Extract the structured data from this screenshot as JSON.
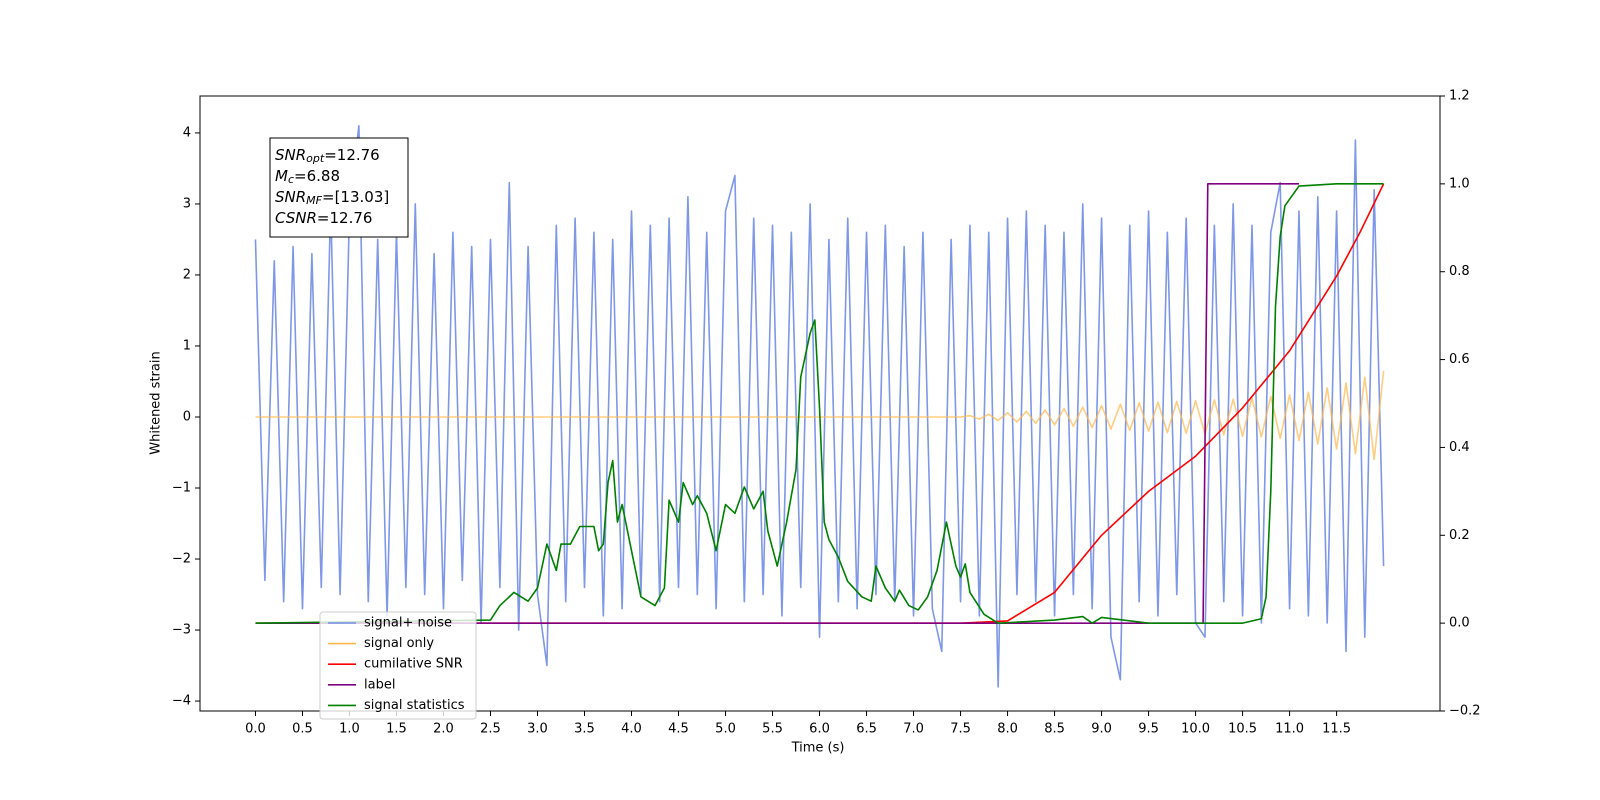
{
  "chart_data": {
    "type": "line",
    "xlabel": "Time (s)",
    "ylabel": "Whitened strain",
    "xlim": [
      -0.59,
      12.6
    ],
    "ylim": [
      -4.14,
      4.52
    ],
    "y2lim": [
      -0.2,
      1.2
    ],
    "xticks": [
      {
        "value": 0,
        "label": "0.0"
      },
      {
        "value": 0.5,
        "label": "0.5"
      },
      {
        "value": 1,
        "label": "1.0"
      },
      {
        "value": 1.5,
        "label": "1.5"
      },
      {
        "value": 2,
        "label": "2.0"
      },
      {
        "value": 2.5,
        "label": "2.5"
      },
      {
        "value": 3,
        "label": "3.0"
      },
      {
        "value": 3.5,
        "label": "3.5"
      },
      {
        "value": 4,
        "label": "4.0"
      },
      {
        "value": 4.5,
        "label": "4.5"
      },
      {
        "value": 5,
        "label": "5.0"
      },
      {
        "value": 5.5,
        "label": "5.5"
      },
      {
        "value": 6,
        "label": "6.0"
      },
      {
        "value": 6.5,
        "label": "6.5"
      },
      {
        "value": 7,
        "label": "7.0"
      },
      {
        "value": 7.5,
        "label": "7.5"
      },
      {
        "value": 8,
        "label": "8.0"
      },
      {
        "value": 8.5,
        "label": "8.5"
      },
      {
        "value": 9,
        "label": "9.0"
      },
      {
        "value": 9.5,
        "label": "9.5"
      },
      {
        "value": 10,
        "label": "10.0"
      },
      {
        "value": 10.5,
        "label": "10.5"
      },
      {
        "value": 11,
        "label": "11.0"
      },
      {
        "value": 11.5,
        "label": "11.5"
      }
    ],
    "yticks": [
      {
        "value": -4,
        "label": "−4"
      },
      {
        "value": -3,
        "label": "−3"
      },
      {
        "value": -2,
        "label": "−2"
      },
      {
        "value": -1,
        "label": "−1"
      },
      0,
      1,
      2,
      3,
      4
    ],
    "y2ticks": [
      {
        "value": -0.2,
        "label": "−0.2"
      },
      {
        "value": 0,
        "label": "0.0"
      },
      0.2,
      0.4,
      0.6,
      0.8,
      {
        "value": 1,
        "label": "1.0"
      },
      1.2
    ],
    "annotation": [
      {
        "main": "SNR",
        "sub": "opt",
        "text": "=12.76"
      },
      {
        "main": "M",
        "sub": "c",
        "text": "=6.88"
      },
      {
        "main": "SNR",
        "sub": "MF",
        "text": "=[13.03]"
      },
      {
        "main": "CSNR",
        "text": "=12.76"
      }
    ],
    "legend": "lower left",
    "series": [
      {
        "name": "signal+ noise",
        "color": "#7791e6",
        "x": [
          0,
          0.1,
          0.2,
          0.3,
          0.4,
          0.5,
          0.6,
          0.7,
          0.8,
          0.9,
          1,
          1.1,
          1.2,
          1.3,
          1.4,
          1.5,
          1.6,
          1.7,
          1.8,
          1.9,
          2,
          2.1,
          2.2,
          2.3,
          2.4,
          2.5,
          2.6,
          2.7,
          2.8,
          2.9,
          3,
          3.1,
          3.2,
          3.3,
          3.4,
          3.5,
          3.6,
          3.7,
          3.8,
          3.9,
          4,
          4.1,
          4.2,
          4.3,
          4.4,
          4.5,
          4.6,
          4.7,
          4.8,
          4.9,
          5,
          5.1,
          5.2,
          5.3,
          5.4,
          5.5,
          5.6,
          5.7,
          5.8,
          5.9,
          6,
          6.1,
          6.2,
          6.3,
          6.4,
          6.5,
          6.6,
          6.7,
          6.8,
          6.9,
          7,
          7.1,
          7.2,
          7.3,
          7.4,
          7.5,
          7.6,
          7.7,
          7.8,
          7.9,
          8,
          8.1,
          8.2,
          8.3,
          8.4,
          8.5,
          8.6,
          8.7,
          8.8,
          8.9,
          9,
          9.1,
          9.2,
          9.3,
          9.4,
          9.5,
          9.6,
          9.7,
          9.8,
          9.9,
          10,
          10.1,
          10.2,
          10.3,
          10.4,
          10.5,
          10.6,
          10.7,
          10.8,
          10.9,
          11,
          11.1,
          11.2,
          11.3,
          11.4,
          11.5,
          11.6,
          11.7,
          11.8,
          11.9,
          12
        ],
        "values": [
          2.5,
          -2.3,
          2.2,
          -2.6,
          2.4,
          -2.7,
          2.3,
          -2.4,
          3.0,
          -2.5,
          2.9,
          4.1,
          -2.6,
          2.5,
          -2.8,
          2.6,
          -2.4,
          3.0,
          -2.5,
          2.3,
          -2.7,
          2.6,
          -2.3,
          2.4,
          -2.9,
          2.5,
          -2.4,
          3.3,
          -3.0,
          2.4,
          -2.5,
          -3.5,
          2.7,
          -2.6,
          2.8,
          -2.4,
          2.6,
          -2.8,
          2.5,
          -2.7,
          2.9,
          -2.5,
          2.7,
          -2.6,
          2.8,
          -2.4,
          3.1,
          -2.5,
          2.6,
          -2.7,
          2.9,
          3.4,
          -2.6,
          2.8,
          -2.5,
          2.7,
          -2.8,
          2.6,
          -2.4,
          3.0,
          -3.1,
          2.5,
          -2.6,
          2.8,
          -2.7,
          2.6,
          -2.5,
          2.7,
          -2.6,
          2.4,
          -2.8,
          2.6,
          -2.7,
          -3.3,
          2.5,
          -2.6,
          2.7,
          -2.8,
          2.6,
          -3.8,
          2.8,
          -2.5,
          2.9,
          -2.6,
          2.7,
          -2.8,
          2.6,
          -2.5,
          3.0,
          -2.7,
          2.8,
          -3.1,
          -3.7,
          2.7,
          -2.6,
          2.9,
          -2.8,
          2.6,
          -2.5,
          2.8,
          -2.9,
          -3.1,
          2.7,
          -2.6,
          3.0,
          -2.8,
          2.7,
          -2.9,
          2.6,
          3.3,
          -2.7,
          2.9,
          -2.8,
          3.1,
          -2.9,
          2.9,
          -3.3,
          3.9,
          -3.1,
          3.2,
          -2.1
        ]
      },
      {
        "name": "signal only",
        "color": "#ffb84d",
        "x": [
          0,
          7.5,
          7.6,
          7.7,
          7.8,
          7.9,
          8,
          8.1,
          8.2,
          8.3,
          8.4,
          8.5,
          8.6,
          8.7,
          8.8,
          8.9,
          9,
          9.1,
          9.2,
          9.3,
          9.4,
          9.5,
          9.6,
          9.7,
          9.8,
          9.9,
          10,
          10.1,
          10.2,
          10.3,
          10.4,
          10.5,
          10.6,
          10.7,
          10.8,
          10.9,
          11,
          11.1,
          11.2,
          11.3,
          11.4,
          11.5,
          11.6,
          11.7,
          11.8,
          11.9,
          12
        ],
        "values": [
          0,
          0,
          0.02,
          -0.03,
          0.04,
          -0.05,
          0.06,
          -0.07,
          0.08,
          -0.09,
          0.1,
          -0.11,
          0.12,
          -0.13,
          0.14,
          -0.15,
          0.16,
          -0.17,
          0.18,
          -0.19,
          0.2,
          -0.2,
          0.21,
          -0.22,
          0.22,
          -0.23,
          0.23,
          -0.24,
          0.24,
          -0.25,
          0.25,
          -0.27,
          0.27,
          -0.28,
          0.29,
          -0.3,
          0.31,
          -0.33,
          0.35,
          -0.38,
          0.41,
          -0.45,
          0.48,
          -0.52,
          0.56,
          -0.6,
          0.65
        ]
      },
      {
        "name": "cumilative SNR",
        "color": "#ff0000",
        "axis": "y2",
        "x": [
          0,
          7.5,
          8,
          8.5,
          9,
          9.5,
          10,
          10.5,
          11,
          11.5,
          11.75,
          12
        ],
        "values": [
          0,
          0,
          0.005,
          0.07,
          0.2,
          0.3,
          0.38,
          0.49,
          0.62,
          0.79,
          0.89,
          1.0
        ]
      },
      {
        "name": "label",
        "color": "#800080",
        "axis": "y2",
        "x": [
          0,
          10.08,
          10.13,
          11.1
        ],
        "values": [
          0,
          0,
          1,
          1
        ]
      },
      {
        "name": "signal statistics",
        "color": "#008000",
        "axis": "y2",
        "x": [
          0,
          2.5,
          2.6,
          2.75,
          2.9,
          3,
          3.1,
          3.2,
          3.25,
          3.35,
          3.45,
          3.6,
          3.65,
          3.7,
          3.75,
          3.8,
          3.85,
          3.9,
          4,
          4.1,
          4.25,
          4.35,
          4.4,
          4.5,
          4.55,
          4.65,
          4.7,
          4.8,
          4.9,
          5,
          5.1,
          5.2,
          5.3,
          5.4,
          5.45,
          5.55,
          5.65,
          5.75,
          5.8,
          5.9,
          5.95,
          6,
          6.05,
          6.1,
          6.2,
          6.3,
          6.45,
          6.55,
          6.6,
          6.7,
          6.8,
          6.85,
          6.95,
          7.05,
          7.15,
          7.25,
          7.35,
          7.45,
          7.5,
          7.55,
          7.6,
          7.75,
          7.9,
          8.5,
          8.8,
          8.9,
          9,
          9.5,
          10.5,
          10.7,
          10.75,
          10.8,
          10.85,
          10.9,
          10.95,
          11.1,
          11.5,
          12
        ],
        "values": [
          0,
          0.007,
          0.04,
          0.07,
          0.05,
          0.08,
          0.18,
          0.12,
          0.18,
          0.18,
          0.22,
          0.22,
          0.165,
          0.18,
          0.32,
          0.37,
          0.23,
          0.27,
          0.165,
          0.06,
          0.04,
          0.08,
          0.28,
          0.23,
          0.32,
          0.27,
          0.29,
          0.25,
          0.165,
          0.27,
          0.25,
          0.31,
          0.26,
          0.3,
          0.21,
          0.13,
          0.23,
          0.35,
          0.56,
          0.66,
          0.69,
          0.49,
          0.23,
          0.19,
          0.15,
          0.095,
          0.06,
          0.05,
          0.13,
          0.08,
          0.05,
          0.075,
          0.04,
          0.03,
          0.06,
          0.12,
          0.23,
          0.13,
          0.105,
          0.135,
          0.07,
          0.02,
          0,
          0.007,
          0.015,
          0,
          0.013,
          0,
          0,
          0.01,
          0.06,
          0.3,
          0.72,
          0.88,
          0.95,
          0.995,
          1.0,
          1.0
        ]
      }
    ]
  }
}
